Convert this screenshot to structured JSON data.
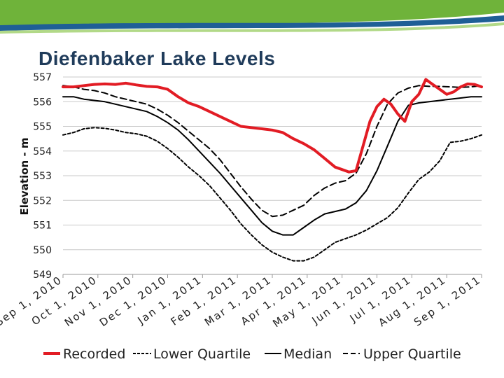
{
  "title": "Diefenbaker Lake Levels",
  "colors": {
    "banner_green": "#6fb33a",
    "banner_blue": "#1f5f96",
    "title": "#1f3b5a",
    "recorded": "#e21c24",
    "quartile": "#000000"
  },
  "chart_data": {
    "type": "line",
    "ylabel": "Elevation - m",
    "xlabel": "",
    "ylim": [
      549,
      557
    ],
    "yticks": [
      549,
      550,
      551,
      552,
      553,
      554,
      555,
      556,
      557
    ],
    "xlim": [
      0,
      12
    ],
    "x_tick_labels": [
      "Sep 1, 2010",
      "Oct 1, 2010",
      "Nov 1, 2010",
      "Dec 1, 2010",
      "Jan 1, 2011",
      "Feb 1, 2011",
      "Mar 1, 2011",
      "Apr 1, 2011",
      "May 1, 2011",
      "Jun 1, 2011",
      "Jul 1, 2011",
      "Aug 1, 2011",
      "Sep 1, 2011"
    ],
    "x_ticks": [
      0,
      1,
      2,
      3,
      4,
      5,
      6,
      7,
      8,
      9,
      10,
      11,
      12
    ],
    "grid": "horizontal",
    "legend_position": "bottom",
    "series": [
      {
        "name": "Recorded",
        "style": "solid-thick",
        "x": [
          0,
          0.3,
          0.6,
          0.9,
          1.2,
          1.5,
          1.8,
          2.1,
          2.4,
          2.7,
          3.0,
          3.3,
          3.6,
          3.9,
          4.2,
          4.5,
          4.8,
          5.1,
          5.4,
          5.7,
          6.0,
          6.3,
          6.6,
          6.9,
          7.2,
          7.5,
          7.8,
          8.0,
          8.2,
          8.4,
          8.6,
          8.8,
          9.0,
          9.2,
          9.4,
          9.6,
          9.8,
          10.0,
          10.2,
          10.4,
          10.6,
          10.8,
          11.0,
          11.2,
          11.4,
          11.6,
          11.8,
          12.0
        ],
        "y": [
          556.6,
          556.6,
          556.65,
          556.7,
          556.72,
          556.7,
          556.75,
          556.68,
          556.62,
          556.6,
          556.5,
          556.2,
          555.95,
          555.8,
          555.6,
          555.4,
          555.2,
          555.0,
          554.95,
          554.9,
          554.85,
          554.75,
          554.5,
          554.3,
          554.05,
          553.7,
          553.35,
          553.25,
          553.15,
          553.2,
          554.2,
          555.2,
          555.8,
          556.1,
          555.9,
          555.5,
          555.2,
          556.0,
          556.3,
          556.9,
          556.7,
          556.5,
          556.3,
          556.4,
          556.6,
          556.72,
          556.7,
          556.6
        ]
      },
      {
        "name": "Lower Quartile",
        "style": "short-dash",
        "x": [
          0,
          0.3,
          0.6,
          0.9,
          1.2,
          1.5,
          1.8,
          2.1,
          2.4,
          2.7,
          3.0,
          3.3,
          3.6,
          3.9,
          4.2,
          4.5,
          4.8,
          5.1,
          5.4,
          5.7,
          6.0,
          6.3,
          6.6,
          6.9,
          7.2,
          7.5,
          7.8,
          8.1,
          8.4,
          8.7,
          9.0,
          9.3,
          9.6,
          9.9,
          10.2,
          10.5,
          10.8,
          11.1,
          11.4,
          11.7,
          12.0
        ],
        "y": [
          554.65,
          554.75,
          554.9,
          554.95,
          554.92,
          554.85,
          554.75,
          554.7,
          554.6,
          554.4,
          554.1,
          553.75,
          553.35,
          553.0,
          552.6,
          552.1,
          551.6,
          551.05,
          550.6,
          550.2,
          549.9,
          549.7,
          549.55,
          549.55,
          549.7,
          550.0,
          550.3,
          550.45,
          550.6,
          550.8,
          551.05,
          551.3,
          551.7,
          552.3,
          552.85,
          553.15,
          553.6,
          554.35,
          554.4,
          554.5,
          554.65
        ]
      },
      {
        "name": "Median",
        "style": "solid",
        "x": [
          0,
          0.3,
          0.6,
          0.9,
          1.2,
          1.5,
          1.8,
          2.1,
          2.4,
          2.7,
          3.0,
          3.3,
          3.6,
          3.9,
          4.2,
          4.5,
          4.8,
          5.1,
          5.4,
          5.7,
          6.0,
          6.3,
          6.6,
          6.9,
          7.2,
          7.5,
          7.8,
          8.1,
          8.4,
          8.7,
          9.0,
          9.3,
          9.6,
          9.9,
          10.2,
          10.5,
          10.8,
          11.1,
          11.4,
          11.7,
          12.0
        ],
        "y": [
          556.2,
          556.2,
          556.1,
          556.05,
          556.0,
          555.9,
          555.8,
          555.7,
          555.6,
          555.4,
          555.15,
          554.85,
          554.45,
          554.0,
          553.55,
          553.1,
          552.6,
          552.1,
          551.6,
          551.1,
          550.75,
          550.6,
          550.6,
          550.9,
          551.2,
          551.45,
          551.55,
          551.65,
          551.9,
          552.4,
          553.2,
          554.2,
          555.2,
          555.85,
          555.95,
          556.0,
          556.05,
          556.1,
          556.15,
          556.2,
          556.2
        ]
      },
      {
        "name": "Upper Quartile",
        "style": "long-dash",
        "x": [
          0,
          0.3,
          0.6,
          0.9,
          1.2,
          1.5,
          1.8,
          2.1,
          2.4,
          2.7,
          3.0,
          3.3,
          3.6,
          3.9,
          4.2,
          4.5,
          4.8,
          5.1,
          5.4,
          5.7,
          6.0,
          6.3,
          6.6,
          6.9,
          7.2,
          7.5,
          7.8,
          8.1,
          8.4,
          8.7,
          9.0,
          9.3,
          9.6,
          9.9,
          10.2,
          10.5,
          10.8,
          11.1,
          11.4,
          11.7,
          12.0
        ],
        "y": [
          556.65,
          556.6,
          556.5,
          556.45,
          556.35,
          556.2,
          556.1,
          556.0,
          555.9,
          555.7,
          555.45,
          555.15,
          554.8,
          554.45,
          554.1,
          553.65,
          553.1,
          552.55,
          552.05,
          551.6,
          551.35,
          551.4,
          551.6,
          551.8,
          552.2,
          552.5,
          552.7,
          552.8,
          553.1,
          553.9,
          555.0,
          555.9,
          556.35,
          556.55,
          556.65,
          556.62,
          556.62,
          556.6,
          556.58,
          556.6,
          556.65
        ]
      }
    ]
  }
}
